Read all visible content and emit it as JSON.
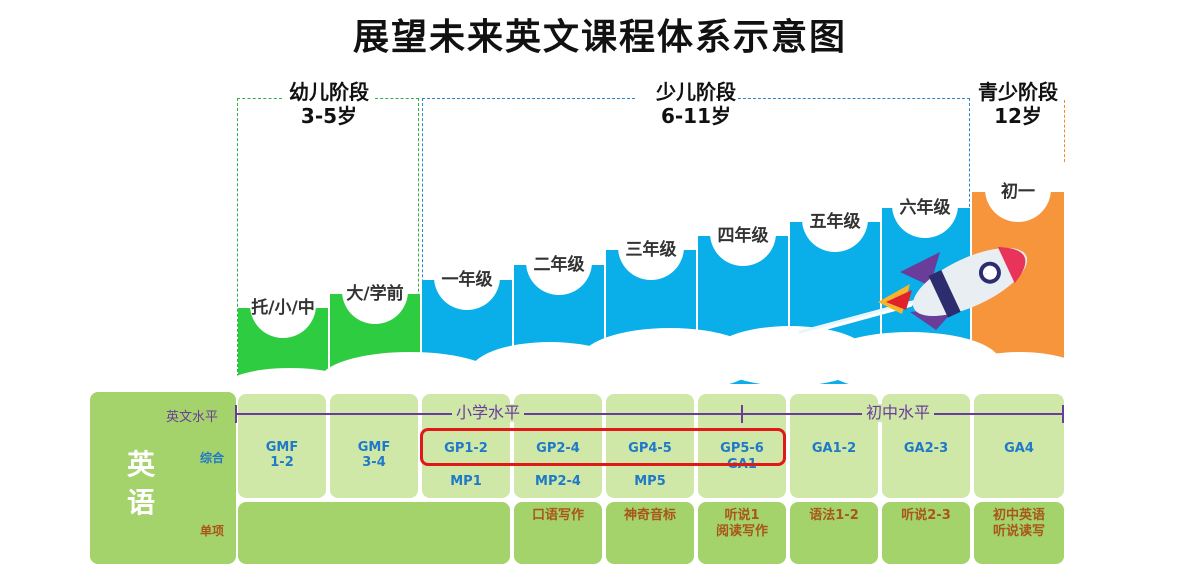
{
  "title": "展望未来英文课程体系示意图",
  "stages": [
    {
      "name": "幼儿阶段",
      "age": "3-5岁",
      "color": "#2db24a"
    },
    {
      "name": "少儿阶段",
      "age": "6-11岁",
      "color": "#2a86d1"
    },
    {
      "name": "青少阶段",
      "age": "12岁",
      "color": "#f08a2a"
    }
  ],
  "grades": [
    "托/小/中",
    "大/学前",
    "一年级",
    "二年级",
    "三年级",
    "四年级",
    "五年级",
    "六年级",
    "初一"
  ],
  "colors": {
    "kindergarten_green": "#2ecc40",
    "primary_blue": "#0aaee8",
    "teen_orange": "#f7953d",
    "table_light_green": "#cfe8a8",
    "table_mid_green": "#a4d36b",
    "axis_purple": "#6a3d9a",
    "highlight_red": "#e01818"
  },
  "table": {
    "subject": "英\n语",
    "axis_row_label": "英文水平",
    "primary_level": "小学水平",
    "junior_level": "初中水平",
    "comprehensive_label": "综合",
    "single_label": "单项",
    "comprehensive": [
      "GMF\n1-2",
      "GMF\n3-4",
      "GP1-2",
      "GP2-4",
      "GP4-5",
      "GP5-6",
      "GA1-2",
      "GA2-3",
      "GA4"
    ],
    "comprehensive_sub": [
      "",
      "",
      "MP1",
      "MP2-4",
      "MP5",
      "GA1",
      "",
      "",
      ""
    ],
    "single_items": [
      "口语写作",
      "神奇音标",
      "听说1\n阅读写作",
      "语法1-2",
      "听说2-3",
      "初中英语\n听说读写"
    ]
  }
}
